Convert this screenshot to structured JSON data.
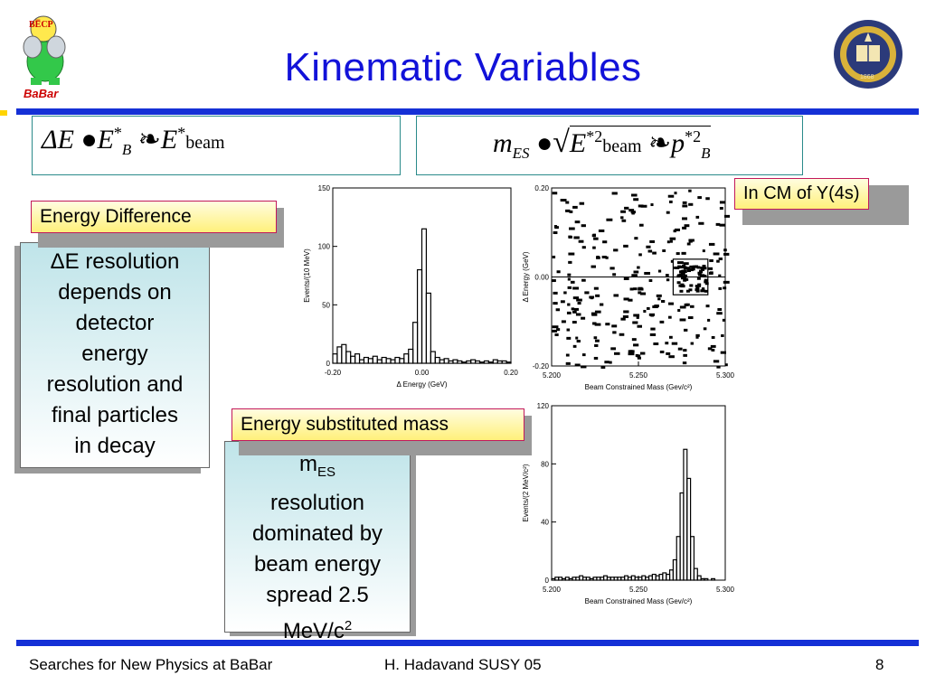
{
  "slide": {
    "title": "Kinematic Variables",
    "logo_text": "BaBar",
    "logo_badge": "BE̅CP",
    "seal_text": "1868"
  },
  "formula_left": {
    "lhs": "ΔE",
    "e1": "E",
    "e1_sup": "*",
    "e1_sub": "B",
    "e2": "E",
    "e2_sup": "*",
    "e2_sub": "beam"
  },
  "formula_right": {
    "lhs": "m",
    "lhs_sub": "ES",
    "e": "E",
    "e_sup": "*2",
    "e_sub": "beam",
    "p": "p",
    "p_sup": "*2",
    "p_sub": "B"
  },
  "labels": {
    "energy_difference": "Energy Difference",
    "energy_substituted_mass": "Energy substituted mass",
    "cm_note": "In CM of Y(4s)"
  },
  "left_panel": {
    "line1": "ΔE resolution",
    "line2": "depends on",
    "line3": "detector",
    "line4": "energy",
    "line5": "resolution and",
    "line6": "final particles",
    "line7": "in decay"
  },
  "right_panel": {
    "line1": "m",
    "line1_sub": "ES",
    "line2": "resolution",
    "line3": "dominated by",
    "line4": "beam energy",
    "line5": "spread 2.5",
    "line6": "MeV/c",
    "line6_sup": "2"
  },
  "footer": {
    "left": "Searches for New Physics at BaBar",
    "center": "H. Hadavand  SUSY 05",
    "page": "8"
  },
  "chart_data": [
    {
      "type": "bar",
      "xlabel": "Δ Energy (GeV)",
      "ylabel": "Events/(10 MeV)",
      "xlim": [
        -0.2,
        0.2
      ],
      "ylim": [
        0,
        150
      ],
      "xticks": [
        "-0.20",
        "0.00",
        "0.20"
      ],
      "yticks": [
        "0",
        "50",
        "100",
        "150"
      ],
      "x": [
        -0.2,
        -0.19,
        -0.18,
        -0.17,
        -0.16,
        -0.15,
        -0.14,
        -0.13,
        -0.12,
        -0.11,
        -0.1,
        -0.09,
        -0.08,
        -0.07,
        -0.06,
        -0.05,
        -0.04,
        -0.03,
        -0.02,
        -0.01,
        0.0,
        0.01,
        0.02,
        0.03,
        0.04,
        0.05,
        0.06,
        0.07,
        0.08,
        0.09,
        0.1,
        0.11,
        0.12,
        0.13,
        0.14,
        0.15,
        0.16,
        0.17,
        0.18,
        0.19
      ],
      "values": [
        8,
        14,
        16,
        10,
        6,
        8,
        3,
        5,
        4,
        6,
        3,
        5,
        4,
        3,
        5,
        4,
        8,
        12,
        35,
        80,
        115,
        60,
        10,
        5,
        3,
        4,
        2,
        3,
        2,
        1,
        2,
        3,
        2,
        1,
        2,
        1,
        3,
        2,
        2,
        1
      ]
    },
    {
      "type": "scatter",
      "xlabel": "Beam Constrained Mass (Gev/c²)",
      "ylabel": "Δ Energy (GeV)",
      "xlim": [
        5.2,
        5.3
      ],
      "ylim": [
        -0.2,
        0.2
      ],
      "xticks": [
        "5.200",
        "5.250",
        "5.300"
      ],
      "yticks": [
        "-0.20",
        "0.00",
        "0.20"
      ],
      "hline": 0.0,
      "box": {
        "x": [
          5.27,
          5.29
        ],
        "y": [
          -0.04,
          0.04
        ]
      }
    },
    {
      "type": "bar",
      "xlabel": "Beam Constrained Mass (Gev/c²)",
      "ylabel": "Events/(2 MeV/c²)",
      "xlim": [
        5.2,
        5.3
      ],
      "ylim": [
        0,
        120
      ],
      "xticks": [
        "5.200",
        "5.250",
        "5.300"
      ],
      "yticks": [
        "0",
        "40",
        "80",
        "120"
      ],
      "x": [
        5.2,
        5.202,
        5.204,
        5.206,
        5.208,
        5.21,
        5.212,
        5.214,
        5.216,
        5.218,
        5.22,
        5.222,
        5.224,
        5.226,
        5.228,
        5.23,
        5.232,
        5.234,
        5.236,
        5.238,
        5.24,
        5.242,
        5.244,
        5.246,
        5.248,
        5.25,
        5.252,
        5.254,
        5.256,
        5.258,
        5.26,
        5.262,
        5.264,
        5.266,
        5.268,
        5.27,
        5.272,
        5.274,
        5.276,
        5.278,
        5.28,
        5.282,
        5.284,
        5.286,
        5.288,
        5.29,
        5.292,
        5.294,
        5.296,
        5.298
      ],
      "values": [
        1,
        2,
        2,
        1,
        2,
        1,
        2,
        2,
        3,
        2,
        2,
        1,
        2,
        2,
        2,
        3,
        2,
        2,
        2,
        2,
        2,
        3,
        2,
        3,
        2,
        2,
        3,
        2,
        3,
        4,
        3,
        4,
        5,
        4,
        7,
        14,
        30,
        60,
        90,
        70,
        30,
        8,
        3,
        1,
        1,
        0,
        1,
        0,
        0,
        0
      ]
    }
  ]
}
